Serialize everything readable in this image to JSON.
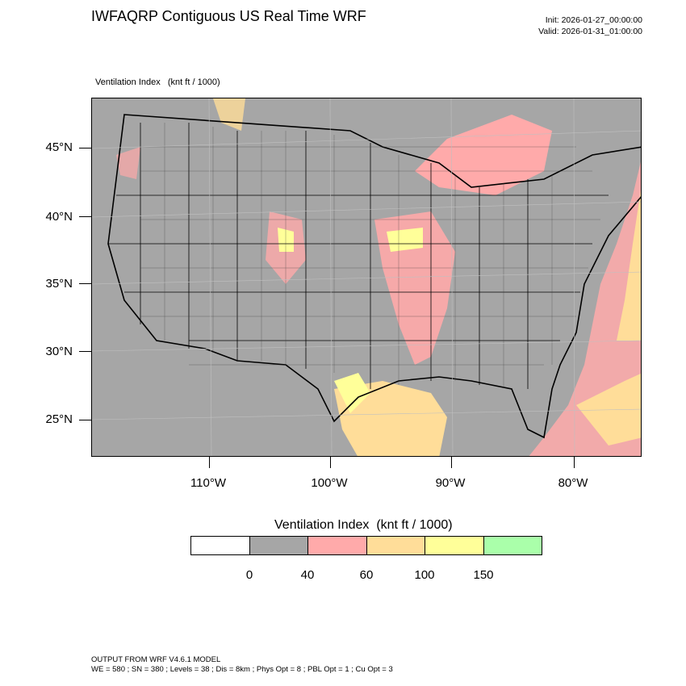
{
  "header": {
    "title": "IWFAQRP Contiguous US Real Time WRF",
    "init": "Init: 2026-01-27_00:00:00",
    "valid": "Valid: 2026-01-31_01:00:00"
  },
  "map": {
    "field_label": "Ventilation Index   (knt ft / 1000)",
    "lat_labels": [
      "45°N",
      "40°N",
      "35°N",
      "30°N",
      "25°N"
    ],
    "lon_labels": [
      "110°W",
      "100°W",
      "90°W",
      "80°W"
    ],
    "colors": {
      "background": "#a6a6a6",
      "level_40_60": "#ffaaaa",
      "level_60_100": "#ffdd99",
      "level_100_150": "#ffff99",
      "border": "#000000"
    }
  },
  "colorbar": {
    "title": "Ventilation Index  (knt ft / 1000)",
    "colors": [
      "#ffffff",
      "#a6a6a6",
      "#ffaaaa",
      "#ffdd99",
      "#ffff99",
      "#aaffaa"
    ],
    "labels": [
      "0",
      "40",
      "60",
      "100",
      "150"
    ]
  },
  "footer": {
    "line1": "OUTPUT FROM WRF V4.6.1 MODEL",
    "line2": "WE = 580 ; SN = 380 ; Levels = 38 ; Dis = 8km ; Phys Opt = 8 ; PBL Opt = 1 ; Cu Opt = 3"
  }
}
